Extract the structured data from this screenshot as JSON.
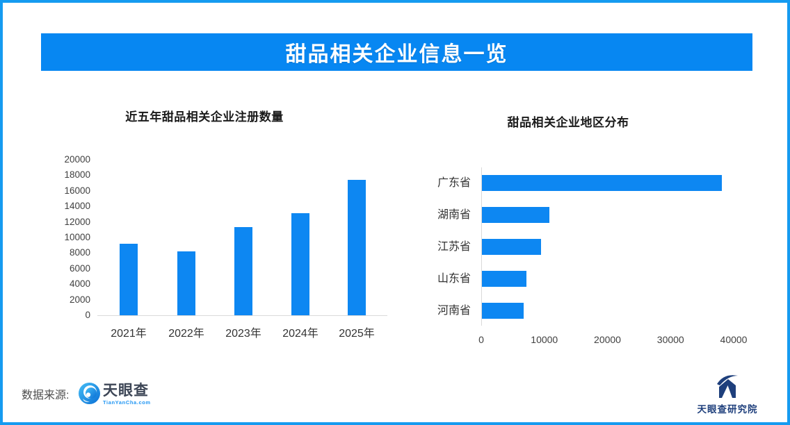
{
  "frame": {
    "border_color": "#159bf0"
  },
  "banner": {
    "title": "甜品相关企业信息一览",
    "bg_color": "#0787f2",
    "text_color": "#ffffff"
  },
  "chart_data": [
    {
      "type": "bar",
      "orientation": "vertical",
      "title": "近五年甜品相关企业注册数量",
      "categories": [
        "2021年",
        "2022年",
        "2023年",
        "2024年",
        "2025年"
      ],
      "values": [
        9200,
        8200,
        11300,
        13100,
        17400
      ],
      "xlabel": "",
      "ylabel": "",
      "ylim": [
        0,
        20000
      ],
      "ytick_step": 2000,
      "bar_color": "#0d87f2",
      "grid": false,
      "legend": "none"
    },
    {
      "type": "bar",
      "orientation": "horizontal",
      "title": "甜品相关企业地区分布",
      "categories": [
        "广东省",
        "湖南省",
        "江苏省",
        "山东省",
        "河南省"
      ],
      "values": [
        38000,
        10700,
        9400,
        7000,
        6600
      ],
      "xlabel": "",
      "ylabel": "",
      "xlim": [
        0,
        40000
      ],
      "xticks": [
        0,
        10000,
        20000,
        30000,
        40000
      ],
      "bar_color": "#0d87f2",
      "grid": false,
      "legend": "none"
    }
  ],
  "footer": {
    "source_label": "数据来源:",
    "tianyancha_logo_text": "天眼查",
    "tianyancha_logo_url": "TianYanCha.com",
    "institute_name": "天眼查研究院"
  }
}
